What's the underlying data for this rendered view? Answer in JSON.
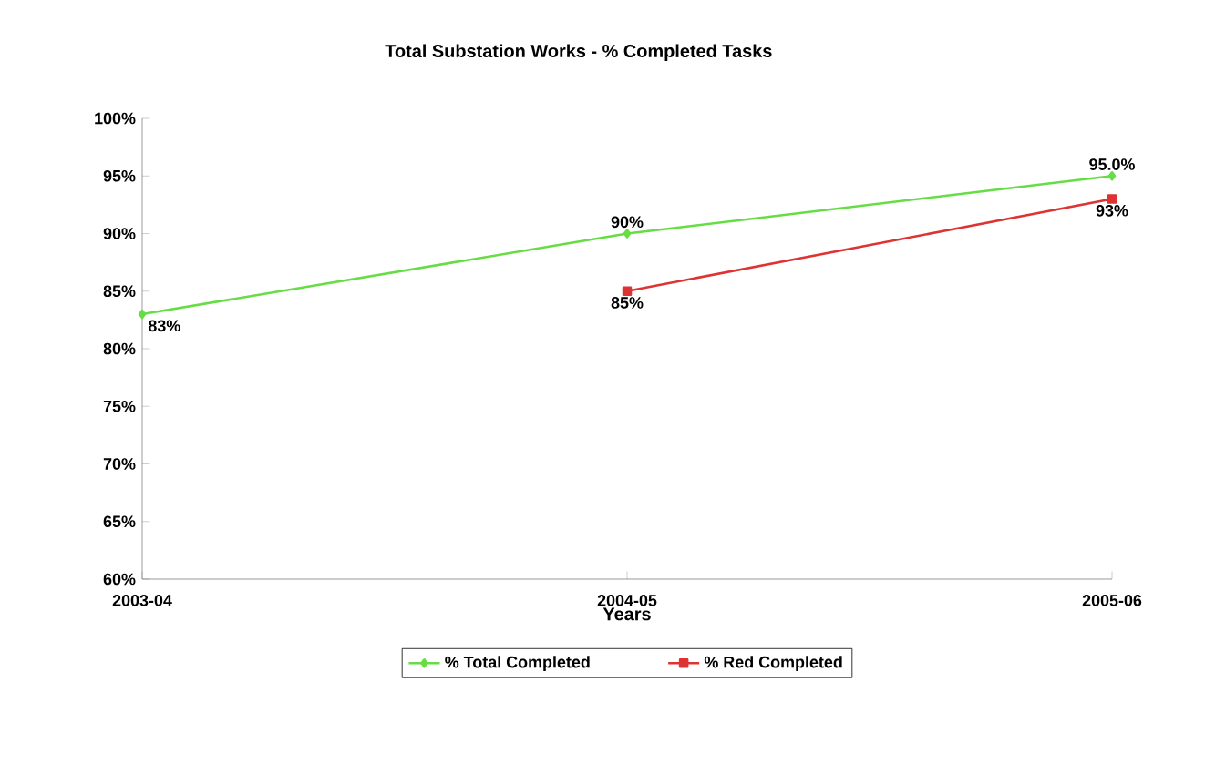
{
  "chart_data": {
    "type": "line",
    "title": "Total Substation Works - % Completed Tasks",
    "xlabel": "Years",
    "categories": [
      "2003-04",
      "2004-05",
      "2005-06"
    ],
    "series": [
      {
        "name": "% Total Completed",
        "color": "#66dd44",
        "marker": "diamond",
        "values": [
          83,
          90,
          95
        ],
        "value_labels": [
          "83%",
          "90%",
          "95.0%"
        ]
      },
      {
        "name": "% Red Completed",
        "color": "#dd3333",
        "marker": "square",
        "values": [
          null,
          85,
          93
        ],
        "value_labels": [
          null,
          "85%",
          "93%"
        ]
      }
    ],
    "ylim": [
      60,
      100
    ],
    "yticks": [
      {
        "value": 60,
        "label": "60%"
      },
      {
        "value": 65,
        "label": "65%"
      },
      {
        "value": 70,
        "label": "70%"
      },
      {
        "value": 75,
        "label": "75%"
      },
      {
        "value": 80,
        "label": "80%"
      },
      {
        "value": 85,
        "label": "85%"
      },
      {
        "value": 90,
        "label": "90%"
      },
      {
        "value": 95,
        "label": "95%"
      },
      {
        "value": 100,
        "label": "100%"
      }
    ],
    "legend": "bottom",
    "grid": false
  }
}
